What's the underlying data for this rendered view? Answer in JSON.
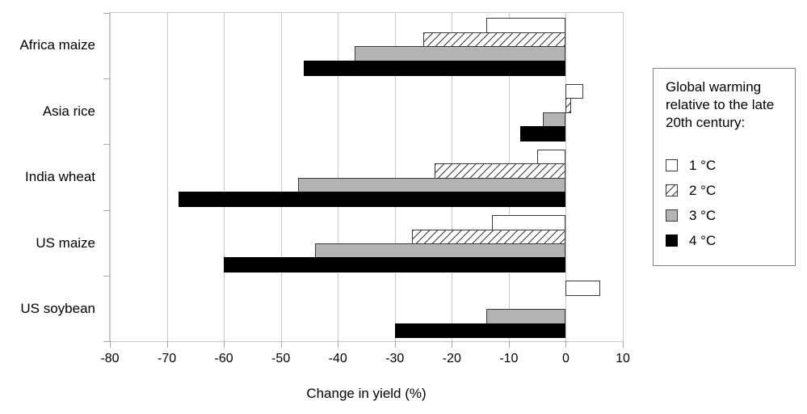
{
  "chart_data": {
    "type": "bar",
    "orientation": "horizontal",
    "categories": [
      "Africa maize",
      "Asia rice",
      "India wheat",
      "US maize",
      "US soybean"
    ],
    "series": [
      {
        "name": "1 °C",
        "fill": "white",
        "values": [
          -14,
          3,
          -5,
          -13,
          6
        ]
      },
      {
        "name": "2 °C",
        "fill": "hatch",
        "values": [
          -25,
          1,
          -23,
          -27,
          0
        ]
      },
      {
        "name": "3 °C",
        "fill": "gray",
        "values": [
          -37,
          -4,
          -47,
          -44,
          -14
        ]
      },
      {
        "name": "4 °C",
        "fill": "black",
        "values": [
          -46,
          -8,
          -68,
          -60,
          -30
        ]
      }
    ],
    "xlabel": "Change in yield (%)",
    "xlim": [
      -80,
      10
    ],
    "xticks": [
      -80,
      -70,
      -60,
      -50,
      -40,
      -30,
      -20,
      -10,
      0,
      10
    ],
    "grid": true,
    "legend_position": "right",
    "legend_title": "Global warming relative to the late 20th century:"
  },
  "colors": {
    "background": "#ffffff",
    "gridline": "#c6c6c6",
    "plot_border": "#c6c6c6",
    "bar_border": "#3a3a3a",
    "gray_fill": "#b3b3b3",
    "black_fill": "#000000",
    "hatch_line": "#3a3a3a",
    "legend_border": "#7f7f7f",
    "text": "#000000"
  }
}
